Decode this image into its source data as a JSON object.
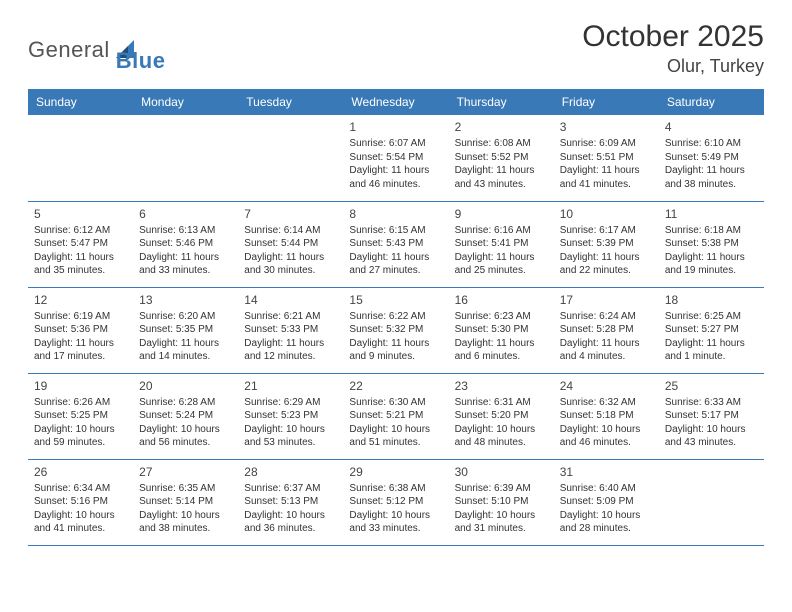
{
  "logo": {
    "text1": "General",
    "text2": "Blue"
  },
  "title": "October 2025",
  "location": "Olur, Turkey",
  "header_bg": "#3a79b7",
  "header_fg": "#ffffff",
  "border_color": "#3a79b7",
  "dayHeaders": [
    "Sunday",
    "Monday",
    "Tuesday",
    "Wednesday",
    "Thursday",
    "Friday",
    "Saturday"
  ],
  "weeks": [
    [
      null,
      null,
      null,
      {
        "n": "1",
        "sunrise": "6:07 AM",
        "sunset": "5:54 PM",
        "daylight": "11 hours and 46 minutes."
      },
      {
        "n": "2",
        "sunrise": "6:08 AM",
        "sunset": "5:52 PM",
        "daylight": "11 hours and 43 minutes."
      },
      {
        "n": "3",
        "sunrise": "6:09 AM",
        "sunset": "5:51 PM",
        "daylight": "11 hours and 41 minutes."
      },
      {
        "n": "4",
        "sunrise": "6:10 AM",
        "sunset": "5:49 PM",
        "daylight": "11 hours and 38 minutes."
      }
    ],
    [
      {
        "n": "5",
        "sunrise": "6:12 AM",
        "sunset": "5:47 PM",
        "daylight": "11 hours and 35 minutes."
      },
      {
        "n": "6",
        "sunrise": "6:13 AM",
        "sunset": "5:46 PM",
        "daylight": "11 hours and 33 minutes."
      },
      {
        "n": "7",
        "sunrise": "6:14 AM",
        "sunset": "5:44 PM",
        "daylight": "11 hours and 30 minutes."
      },
      {
        "n": "8",
        "sunrise": "6:15 AM",
        "sunset": "5:43 PM",
        "daylight": "11 hours and 27 minutes."
      },
      {
        "n": "9",
        "sunrise": "6:16 AM",
        "sunset": "5:41 PM",
        "daylight": "11 hours and 25 minutes."
      },
      {
        "n": "10",
        "sunrise": "6:17 AM",
        "sunset": "5:39 PM",
        "daylight": "11 hours and 22 minutes."
      },
      {
        "n": "11",
        "sunrise": "6:18 AM",
        "sunset": "5:38 PM",
        "daylight": "11 hours and 19 minutes."
      }
    ],
    [
      {
        "n": "12",
        "sunrise": "6:19 AM",
        "sunset": "5:36 PM",
        "daylight": "11 hours and 17 minutes."
      },
      {
        "n": "13",
        "sunrise": "6:20 AM",
        "sunset": "5:35 PM",
        "daylight": "11 hours and 14 minutes."
      },
      {
        "n": "14",
        "sunrise": "6:21 AM",
        "sunset": "5:33 PM",
        "daylight": "11 hours and 12 minutes."
      },
      {
        "n": "15",
        "sunrise": "6:22 AM",
        "sunset": "5:32 PM",
        "daylight": "11 hours and 9 minutes."
      },
      {
        "n": "16",
        "sunrise": "6:23 AM",
        "sunset": "5:30 PM",
        "daylight": "11 hours and 6 minutes."
      },
      {
        "n": "17",
        "sunrise": "6:24 AM",
        "sunset": "5:28 PM",
        "daylight": "11 hours and 4 minutes."
      },
      {
        "n": "18",
        "sunrise": "6:25 AM",
        "sunset": "5:27 PM",
        "daylight": "11 hours and 1 minute."
      }
    ],
    [
      {
        "n": "19",
        "sunrise": "6:26 AM",
        "sunset": "5:25 PM",
        "daylight": "10 hours and 59 minutes."
      },
      {
        "n": "20",
        "sunrise": "6:28 AM",
        "sunset": "5:24 PM",
        "daylight": "10 hours and 56 minutes."
      },
      {
        "n": "21",
        "sunrise": "6:29 AM",
        "sunset": "5:23 PM",
        "daylight": "10 hours and 53 minutes."
      },
      {
        "n": "22",
        "sunrise": "6:30 AM",
        "sunset": "5:21 PM",
        "daylight": "10 hours and 51 minutes."
      },
      {
        "n": "23",
        "sunrise": "6:31 AM",
        "sunset": "5:20 PM",
        "daylight": "10 hours and 48 minutes."
      },
      {
        "n": "24",
        "sunrise": "6:32 AM",
        "sunset": "5:18 PM",
        "daylight": "10 hours and 46 minutes."
      },
      {
        "n": "25",
        "sunrise": "6:33 AM",
        "sunset": "5:17 PM",
        "daylight": "10 hours and 43 minutes."
      }
    ],
    [
      {
        "n": "26",
        "sunrise": "6:34 AM",
        "sunset": "5:16 PM",
        "daylight": "10 hours and 41 minutes."
      },
      {
        "n": "27",
        "sunrise": "6:35 AM",
        "sunset": "5:14 PM",
        "daylight": "10 hours and 38 minutes."
      },
      {
        "n": "28",
        "sunrise": "6:37 AM",
        "sunset": "5:13 PM",
        "daylight": "10 hours and 36 minutes."
      },
      {
        "n": "29",
        "sunrise": "6:38 AM",
        "sunset": "5:12 PM",
        "daylight": "10 hours and 33 minutes."
      },
      {
        "n": "30",
        "sunrise": "6:39 AM",
        "sunset": "5:10 PM",
        "daylight": "10 hours and 31 minutes."
      },
      {
        "n": "31",
        "sunrise": "6:40 AM",
        "sunset": "5:09 PM",
        "daylight": "10 hours and 28 minutes."
      },
      null
    ]
  ],
  "labels": {
    "sunrise": "Sunrise:",
    "sunset": "Sunset:",
    "daylight": "Daylight:"
  }
}
